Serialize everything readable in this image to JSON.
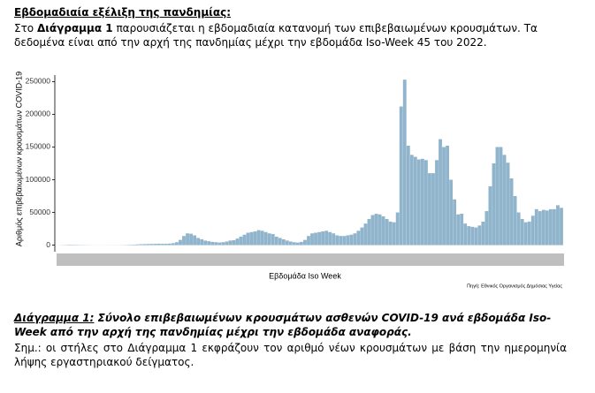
{
  "header": {
    "title": "Εβδομαδιαία εξέλιξη της πανδημίας:"
  },
  "intro": {
    "before": "Στο ",
    "bold": "Διάγραμμα 1",
    "after": " παρουσιάζεται η εβδομαδιαία κατανομή των επιβεβαιωμένων κρουσμάτων. Τα δεδομένα είναι από την αρχή της πανδημίας μέχρι την εβδομάδα Iso-Week 45 του 2022."
  },
  "chart_data": {
    "type": "bar",
    "y_label": "Αριθμός επιβεβαιωμένων κρουσμάτων COVID-19",
    "x_label": "Εβδομάδα Iso Week",
    "source": "Πηγή: Εθνικός Οργανισμός Δημόσιας Υγείας",
    "color": "#8fb4cb",
    "ylim": [
      -10000,
      260000
    ],
    "yticks": [
      0,
      50000,
      100000,
      150000,
      200000,
      250000
    ],
    "categories": [
      null,
      null,
      null,
      null,
      null,
      null,
      null,
      null,
      null,
      null,
      null,
      null,
      null,
      null,
      null,
      null,
      null,
      null,
      null,
      null,
      null,
      null,
      null,
      null,
      null,
      null,
      null,
      null,
      null,
      null,
      null,
      null,
      null,
      null,
      null,
      null,
      null,
      null,
      null,
      null,
      null,
      null,
      null,
      null,
      null,
      null,
      null,
      null,
      null,
      null,
      null,
      null,
      null,
      null,
      null,
      null,
      null,
      null,
      null,
      null,
      null,
      null,
      null,
      null,
      null,
      null,
      null,
      null,
      null,
      null,
      null,
      null,
      null,
      null,
      null,
      null,
      null,
      null,
      null,
      null,
      null,
      null,
      null,
      null,
      null,
      null,
      null,
      null,
      null,
      null,
      null,
      null,
      null,
      null,
      null,
      null,
      null,
      null,
      null,
      null,
      null,
      null,
      null,
      null,
      null,
      null,
      null,
      null,
      null,
      null,
      null,
      null,
      null,
      null,
      null,
      null,
      null,
      null,
      null,
      null,
      null,
      null,
      null,
      null,
      null,
      null,
      null,
      null,
      null,
      null,
      null,
      null,
      null,
      null,
      null,
      null,
      null,
      null,
      null,
      null,
      null,
      null
    ],
    "values": [
      100,
      300,
      500,
      700,
      600,
      500,
      400,
      300,
      200,
      150,
      100,
      100,
      100,
      100,
      150,
      150,
      200,
      200,
      300,
      400,
      600,
      800,
      1200,
      1500,
      1600,
      1800,
      1900,
      2000,
      2200,
      2000,
      2100,
      2400,
      3000,
      4500,
      8000,
      14000,
      18000,
      17500,
      15000,
      11000,
      9000,
      7000,
      6000,
      5000,
      4500,
      4000,
      4500,
      5500,
      7000,
      7500,
      10000,
      13000,
      16000,
      19000,
      20000,
      21000,
      23000,
      22000,
      20000,
      18000,
      17000,
      13000,
      11000,
      9000,
      7000,
      5500,
      4500,
      4000,
      5000,
      8000,
      14000,
      18000,
      19000,
      20000,
      21000,
      22000,
      20000,
      18000,
      15000,
      14000,
      14000,
      15000,
      16000,
      18000,
      22000,
      27000,
      33000,
      40000,
      46000,
      48000,
      47000,
      44000,
      40000,
      36000,
      35000,
      50000,
      212000,
      253000,
      152000,
      138000,
      135000,
      131000,
      132000,
      130000,
      110000,
      110000,
      130000,
      162000,
      150000,
      152000,
      100000,
      70000,
      47000,
      48000,
      33000,
      29000,
      28000,
      27000,
      30000,
      36000,
      52000,
      90000,
      125000,
      150000,
      150000,
      138000,
      126000,
      102000,
      75000,
      50000,
      40000,
      35000,
      36000,
      45000,
      55000,
      52000,
      54000,
      53000,
      55000,
      55000,
      61000,
      57000
    ]
  },
  "caption": {
    "label": "Διάγραμμα 1:",
    "text": " Σύνολο επιβεβαιωμένων κρουσμάτων ασθενών COVID-19 ανά εβδομάδα Iso-Week από την αρχή της πανδημίας μέχρι την εβδομάδα αναφοράς."
  },
  "note": "Σημ.:  οι στήλες στο Διάγραμμα 1 εκφράζουν τον αριθμό νέων κρουσμάτων με βάση την ημερομηνία λήψης εργαστηριακού δείγματος."
}
